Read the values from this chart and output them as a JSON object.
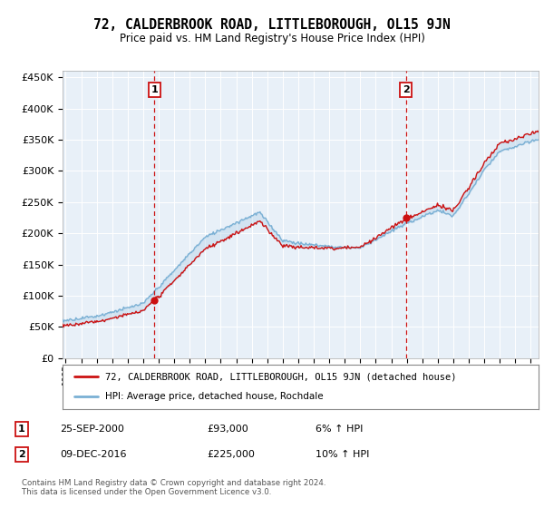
{
  "title": "72, CALDERBROOK ROAD, LITTLEBOROUGH, OL15 9JN",
  "subtitle": "Price paid vs. HM Land Registry's House Price Index (HPI)",
  "title_fontsize": 10.5,
  "subtitle_fontsize": 8.5,
  "ylabel_ticks": [
    "£0",
    "£50K",
    "£100K",
    "£150K",
    "£200K",
    "£250K",
    "£300K",
    "£350K",
    "£400K",
    "£450K"
  ],
  "ytick_values": [
    0,
    50000,
    100000,
    150000,
    200000,
    250000,
    300000,
    350000,
    400000,
    450000
  ],
  "ylim": [
    0,
    460000
  ],
  "xlim_start": 1994.8,
  "xlim_end": 2025.5,
  "background_color": "#f0f4fa",
  "plot_bg_color": "#e8f0f8",
  "grid_color": "#ffffff",
  "hpi_line_color": "#7ab0d4",
  "price_line_color": "#cc1111",
  "fill_color": "#b8d4ea",
  "sale1_date_num": 2000.73,
  "sale1_price": 93000,
  "sale2_date_num": 2016.94,
  "sale2_price": 225000,
  "dashed_line_color": "#cc1111",
  "legend_line1": "72, CALDERBROOK ROAD, LITTLEBOROUGH, OL15 9JN (detached house)",
  "legend_line2": "HPI: Average price, detached house, Rochdale",
  "footer_text": "Contains HM Land Registry data © Crown copyright and database right 2024.\nThis data is licensed under the Open Government Licence v3.0.",
  "xtick_years": [
    1995,
    1996,
    1997,
    1998,
    1999,
    2000,
    2001,
    2002,
    2003,
    2004,
    2005,
    2006,
    2007,
    2008,
    2009,
    2010,
    2011,
    2012,
    2013,
    2014,
    2015,
    2016,
    2017,
    2018,
    2019,
    2020,
    2021,
    2022,
    2023,
    2024,
    2025
  ]
}
